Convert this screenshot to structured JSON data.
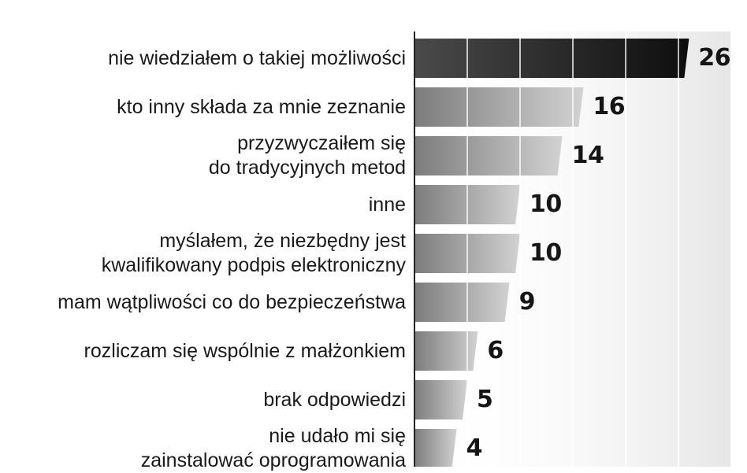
{
  "chart_data": {
    "type": "bar",
    "orientation": "horizontal",
    "categories": [
      [
        "nie wiedziałem o takiej możliwości"
      ],
      [
        "kto inny składa za mnie zeznanie"
      ],
      [
        "przyzwyczaiłem się",
        "do tradycyjnych metod"
      ],
      [
        "inne"
      ],
      [
        "myślałem, że niezbędny jest",
        "kwalifikowany podpis elektroniczny"
      ],
      [
        "mam wątpliwości co do bezpieczeństwa"
      ],
      [
        "rozliczam się wspólnie z małżonkiem"
      ],
      [
        "brak odpowiedzi"
      ],
      [
        "nie udało mi się",
        "zainstalować oprogramowania"
      ]
    ],
    "values": [
      26,
      16,
      14,
      10,
      10,
      9,
      6,
      5,
      4
    ],
    "xlim": [
      0,
      30
    ],
    "grid": true,
    "colors": {
      "highlight_bar": "#1e1e1e",
      "bar_dark": "#7c7c7c",
      "bar_light": "#d2d2d2",
      "grid_line": "#ffffff",
      "axis_line": "#222222",
      "background_stripe": "#eeeeee"
    }
  }
}
